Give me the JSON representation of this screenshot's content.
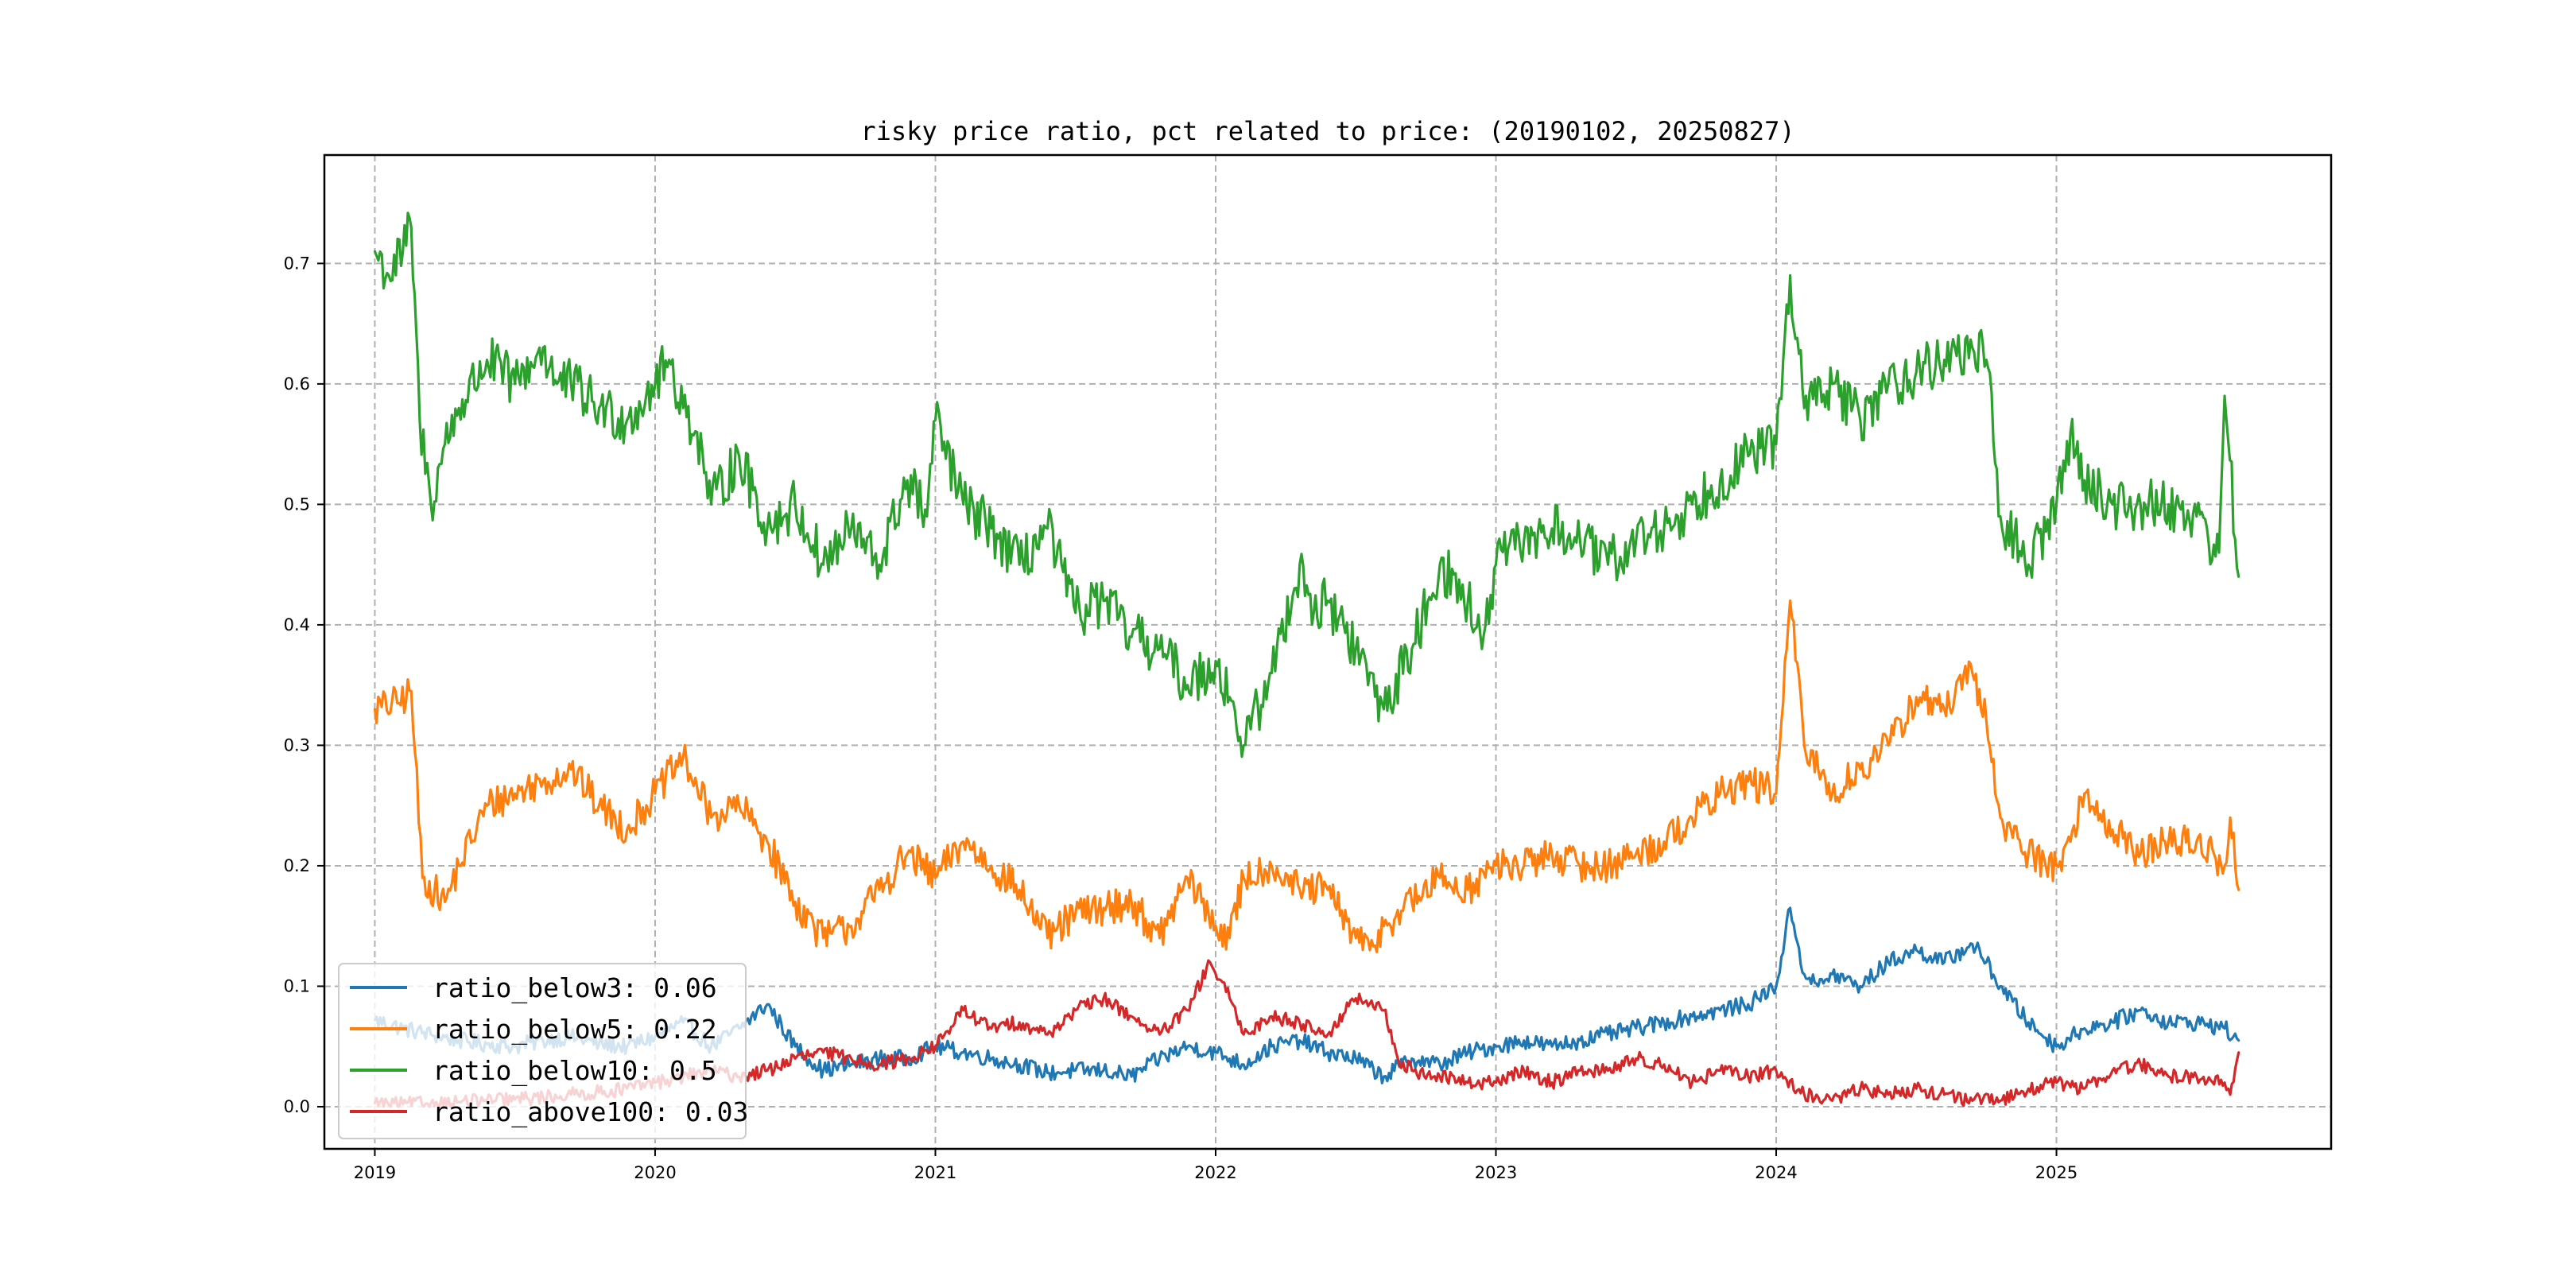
{
  "chart_data": {
    "type": "line",
    "title": "risky price ratio, pct related to price: (20190102, 20250827)",
    "xlabel": "",
    "ylabel": "",
    "xlim": [
      2018.82,
      2025.98
    ],
    "ylim": [
      -0.035,
      0.79
    ],
    "x_ticks": [
      2019,
      2020,
      2021,
      2022,
      2023,
      2024,
      2025
    ],
    "x_tick_labels": [
      "2019",
      "2020",
      "2021",
      "2022",
      "2023",
      "2024",
      "2025"
    ],
    "y_ticks": [
      0.0,
      0.1,
      0.2,
      0.3,
      0.4,
      0.5,
      0.6,
      0.7
    ],
    "y_tick_labels": [
      "0.0",
      "0.1",
      "0.2",
      "0.3",
      "0.4",
      "0.5",
      "0.6",
      "0.7"
    ],
    "grid": true,
    "legend_position": "lower-left",
    "series": [
      {
        "name": "ratio_below3",
        "legend_label": "ratio_below3: 0.06",
        "color": "#1f77b4",
        "x": [
          2019.0,
          2019.1,
          2019.2,
          2019.3,
          2019.4,
          2019.5,
          2019.6,
          2019.7,
          2019.8,
          2019.9,
          2020.0,
          2020.1,
          2020.2,
          2020.3,
          2020.4,
          2020.5,
          2020.6,
          2020.7,
          2020.8,
          2020.9,
          2021.0,
          2021.1,
          2021.2,
          2021.3,
          2021.4,
          2021.5,
          2021.6,
          2021.7,
          2021.8,
          2021.9,
          2022.0,
          2022.1,
          2022.2,
          2022.3,
          2022.4,
          2022.5,
          2022.6,
          2022.7,
          2022.8,
          2022.9,
          2023.0,
          2023.1,
          2023.2,
          2023.3,
          2023.4,
          2023.5,
          2023.6,
          2023.7,
          2023.8,
          2023.9,
          2024.0,
          2024.05,
          2024.1,
          2024.15,
          2024.2,
          2024.3,
          2024.4,
          2024.5,
          2024.6,
          2024.7,
          2024.75,
          2024.8,
          2024.9,
          2025.0,
          2025.1,
          2025.2,
          2025.3,
          2025.4,
          2025.5,
          2025.6,
          2025.65
        ],
        "values": [
          0.072,
          0.065,
          0.06,
          0.055,
          0.052,
          0.05,
          0.055,
          0.058,
          0.052,
          0.05,
          0.058,
          0.07,
          0.05,
          0.065,
          0.085,
          0.05,
          0.03,
          0.035,
          0.04,
          0.04,
          0.05,
          0.045,
          0.04,
          0.035,
          0.028,
          0.03,
          0.03,
          0.025,
          0.04,
          0.05,
          0.045,
          0.035,
          0.05,
          0.055,
          0.045,
          0.04,
          0.025,
          0.04,
          0.035,
          0.045,
          0.05,
          0.055,
          0.05,
          0.055,
          0.06,
          0.065,
          0.07,
          0.075,
          0.08,
          0.085,
          0.1,
          0.165,
          0.11,
          0.1,
          0.11,
          0.1,
          0.12,
          0.13,
          0.12,
          0.135,
          0.12,
          0.1,
          0.07,
          0.05,
          0.065,
          0.07,
          0.08,
          0.07,
          0.07,
          0.065,
          0.055
        ]
      },
      {
        "name": "ratio_below5",
        "legend_label": "ratio_below5: 0.22",
        "color": "#ff7f0e",
        "x": [
          2019.0,
          2019.08,
          2019.13,
          2019.17,
          2019.25,
          2019.3,
          2019.4,
          2019.5,
          2019.6,
          2019.7,
          2019.8,
          2019.9,
          2020.0,
          2020.1,
          2020.15,
          2020.2,
          2020.3,
          2020.4,
          2020.5,
          2020.6,
          2020.7,
          2020.8,
          2020.9,
          2021.0,
          2021.1,
          2021.2,
          2021.3,
          2021.4,
          2021.5,
          2021.6,
          2021.7,
          2021.8,
          2021.9,
          2022.0,
          2022.05,
          2022.1,
          2022.2,
          2022.3,
          2022.4,
          2022.5,
          2022.55,
          2022.6,
          2022.7,
          2022.8,
          2022.9,
          2023.0,
          2023.1,
          2023.2,
          2023.3,
          2023.4,
          2023.5,
          2023.6,
          2023.7,
          2023.8,
          2023.9,
          2024.0,
          2024.05,
          2024.1,
          2024.15,
          2024.2,
          2024.3,
          2024.4,
          2024.5,
          2024.6,
          2024.7,
          2024.75,
          2024.8,
          2024.9,
          2025.0,
          2025.05,
          2025.1,
          2025.2,
          2025.3,
          2025.4,
          2025.5,
          2025.6,
          2025.62,
          2025.65
        ],
        "values": [
          0.33,
          0.335,
          0.345,
          0.19,
          0.17,
          0.2,
          0.25,
          0.26,
          0.27,
          0.28,
          0.25,
          0.23,
          0.26,
          0.29,
          0.265,
          0.24,
          0.25,
          0.22,
          0.17,
          0.14,
          0.15,
          0.18,
          0.21,
          0.19,
          0.22,
          0.2,
          0.18,
          0.14,
          0.16,
          0.165,
          0.17,
          0.14,
          0.19,
          0.15,
          0.14,
          0.19,
          0.2,
          0.18,
          0.18,
          0.14,
          0.13,
          0.15,
          0.17,
          0.19,
          0.18,
          0.2,
          0.2,
          0.21,
          0.2,
          0.2,
          0.21,
          0.22,
          0.24,
          0.26,
          0.27,
          0.26,
          0.42,
          0.3,
          0.28,
          0.26,
          0.28,
          0.3,
          0.34,
          0.33,
          0.36,
          0.32,
          0.24,
          0.21,
          0.2,
          0.22,
          0.26,
          0.23,
          0.21,
          0.22,
          0.22,
          0.2,
          0.24,
          0.18
        ]
      },
      {
        "name": "ratio_below10",
        "legend_label": "ratio_below10: 0.5",
        "color": "#2ca02c",
        "x": [
          2019.0,
          2019.05,
          2019.1,
          2019.13,
          2019.16,
          2019.2,
          2019.25,
          2019.3,
          2019.4,
          2019.5,
          2019.6,
          2019.65,
          2019.7,
          2019.8,
          2019.9,
          2020.0,
          2020.05,
          2020.1,
          2020.15,
          2020.2,
          2020.3,
          2020.4,
          2020.5,
          2020.6,
          2020.7,
          2020.8,
          2020.9,
          2020.97,
          2021.0,
          2021.1,
          2021.2,
          2021.3,
          2021.4,
          2021.5,
          2021.6,
          2021.7,
          2021.8,
          2021.9,
          2022.0,
          2022.05,
          2022.1,
          2022.2,
          2022.3,
          2022.35,
          2022.4,
          2022.5,
          2022.6,
          2022.7,
          2022.8,
          2022.9,
          2022.95,
          2023.0,
          2023.1,
          2023.2,
          2023.3,
          2023.4,
          2023.5,
          2023.6,
          2023.7,
          2023.8,
          2023.9,
          2024.0,
          2024.05,
          2024.1,
          2024.2,
          2024.3,
          2024.4,
          2024.5,
          2024.6,
          2024.7,
          2024.75,
          2024.8,
          2024.9,
          2025.0,
          2025.05,
          2025.1,
          2025.2,
          2025.3,
          2025.4,
          2025.5,
          2025.58,
          2025.6,
          2025.65
        ],
        "values": [
          0.71,
          0.69,
          0.71,
          0.73,
          0.57,
          0.5,
          0.55,
          0.58,
          0.62,
          0.6,
          0.63,
          0.6,
          0.6,
          0.58,
          0.57,
          0.6,
          0.62,
          0.58,
          0.56,
          0.5,
          0.54,
          0.48,
          0.5,
          0.45,
          0.48,
          0.45,
          0.52,
          0.49,
          0.57,
          0.5,
          0.48,
          0.45,
          0.48,
          0.41,
          0.42,
          0.39,
          0.38,
          0.35,
          0.37,
          0.34,
          0.3,
          0.36,
          0.45,
          0.41,
          0.42,
          0.38,
          0.33,
          0.38,
          0.45,
          0.42,
          0.38,
          0.45,
          0.47,
          0.48,
          0.47,
          0.45,
          0.47,
          0.48,
          0.5,
          0.52,
          0.54,
          0.55,
          0.69,
          0.58,
          0.6,
          0.57,
          0.6,
          0.61,
          0.62,
          0.63,
          0.62,
          0.49,
          0.45,
          0.5,
          0.56,
          0.52,
          0.5,
          0.5,
          0.5,
          0.49,
          0.46,
          0.59,
          0.44
        ]
      },
      {
        "name": "ratio_above100",
        "legend_label": "ratio_above100: 0.03",
        "color": "#d62728",
        "x": [
          2019.0,
          2019.1,
          2019.2,
          2019.3,
          2019.4,
          2019.5,
          2019.6,
          2019.7,
          2019.8,
          2019.9,
          2020.0,
          2020.1,
          2020.2,
          2020.3,
          2020.4,
          2020.5,
          2020.6,
          2020.7,
          2020.8,
          2020.9,
          2021.0,
          2021.1,
          2021.2,
          2021.3,
          2021.4,
          2021.5,
          2021.6,
          2021.7,
          2021.8,
          2021.9,
          2021.98,
          2022.05,
          2022.1,
          2022.2,
          2022.3,
          2022.4,
          2022.5,
          2022.6,
          2022.65,
          2022.7,
          2022.8,
          2022.9,
          2023.0,
          2023.1,
          2023.2,
          2023.3,
          2023.4,
          2023.5,
          2023.6,
          2023.7,
          2023.8,
          2023.9,
          2024.0,
          2024.1,
          2024.2,
          2024.3,
          2024.4,
          2024.5,
          2024.6,
          2024.7,
          2024.8,
          2024.9,
          2025.0,
          2025.1,
          2025.2,
          2025.3,
          2025.4,
          2025.5,
          2025.6,
          2025.62,
          2025.65
        ],
        "values": [
          0.003,
          0.002,
          0.003,
          0.004,
          0.005,
          0.006,
          0.008,
          0.01,
          0.012,
          0.015,
          0.02,
          0.025,
          0.03,
          0.025,
          0.03,
          0.04,
          0.045,
          0.04,
          0.035,
          0.04,
          0.05,
          0.08,
          0.065,
          0.07,
          0.06,
          0.08,
          0.09,
          0.075,
          0.06,
          0.08,
          0.12,
          0.09,
          0.06,
          0.075,
          0.07,
          0.06,
          0.09,
          0.08,
          0.04,
          0.03,
          0.025,
          0.02,
          0.02,
          0.03,
          0.02,
          0.03,
          0.03,
          0.04,
          0.035,
          0.02,
          0.03,
          0.025,
          0.03,
          0.01,
          0.005,
          0.015,
          0.01,
          0.015,
          0.01,
          0.005,
          0.005,
          0.015,
          0.02,
          0.015,
          0.03,
          0.035,
          0.025,
          0.025,
          0.02,
          0.01,
          0.045
        ]
      }
    ]
  }
}
